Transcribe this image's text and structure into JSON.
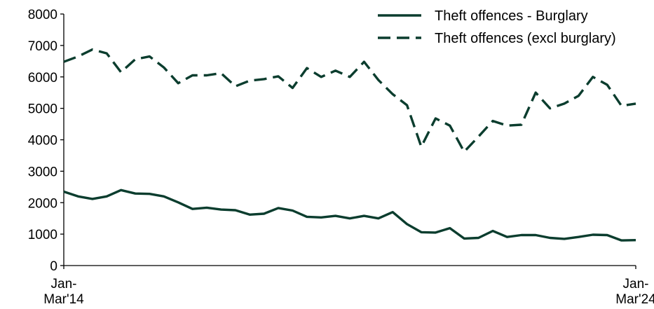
{
  "chart_data": {
    "type": "line",
    "title": "",
    "xlabel": "",
    "ylabel": "",
    "ylim": [
      0,
      8000
    ],
    "yticks": [
      0,
      1000,
      2000,
      3000,
      4000,
      5000,
      6000,
      7000,
      8000
    ],
    "x_tick_labels": [
      {
        "index": 0,
        "line1": "Jan-",
        "line2": "Mar'14"
      },
      {
        "index": 40,
        "line1": "Jan-",
        "line2": "Mar'24"
      }
    ],
    "grid": false,
    "legend_position": "top-right",
    "series": [
      {
        "name": "Theft offences - Burglary",
        "style": "solid",
        "color": "#0b3d2e",
        "values": [
          2350,
          2200,
          2120,
          2200,
          2400,
          2290,
          2280,
          2200,
          2010,
          1800,
          1840,
          1780,
          1760,
          1620,
          1650,
          1830,
          1750,
          1550,
          1530,
          1580,
          1500,
          1580,
          1500,
          1700,
          1320,
          1060,
          1050,
          1190,
          860,
          880,
          1100,
          910,
          970,
          970,
          880,
          850,
          910,
          980,
          970,
          800,
          810
        ]
      },
      {
        "name": "Theft offences (excl burglary)",
        "style": "dashed",
        "color": "#0b3d2e",
        "values": [
          6480,
          6650,
          6870,
          6750,
          6150,
          6560,
          6650,
          6300,
          5800,
          6050,
          6050,
          6120,
          5700,
          5880,
          5930,
          6020,
          5650,
          6280,
          6000,
          6200,
          6000,
          6480,
          5900,
          5450,
          5100,
          3780,
          4680,
          4450,
          3620,
          4100,
          4600,
          4450,
          4480,
          5500,
          5000,
          5150,
          5400,
          6000,
          5750,
          5080,
          5150
        ]
      }
    ]
  }
}
